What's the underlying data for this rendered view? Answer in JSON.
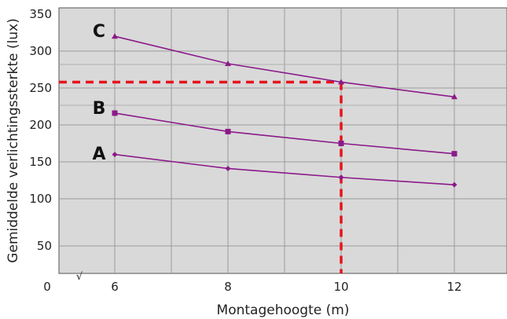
{
  "chart_data": {
    "type": "line",
    "xlabel": "Montagehoogte (m)",
    "ylabel": "Gemiddelde verlichtingssterkte (lux)",
    "x_ticks": [
      6,
      8,
      10,
      12
    ],
    "y_ticks": [
      50,
      100,
      150,
      200,
      250,
      300,
      350
    ],
    "origin_label": "0",
    "axis_break": "√",
    "grid": true,
    "background": "#d9d9d9",
    "series": [
      {
        "name": "C",
        "marker": "triangle",
        "color": "#8b1a89",
        "x": [
          6,
          8,
          10,
          12
        ],
        "y": [
          320,
          283,
          258,
          238
        ]
      },
      {
        "name": "B",
        "marker": "square",
        "color": "#8b1a89",
        "x": [
          6,
          8,
          10,
          12
        ],
        "y": [
          216,
          191,
          175,
          161
        ]
      },
      {
        "name": "A",
        "marker": "diamond",
        "color": "#8b1a89",
        "x": [
          6,
          8,
          10,
          12
        ],
        "y": [
          160,
          141,
          129,
          119
        ]
      }
    ],
    "guide": {
      "color": "#e8121b",
      "x": 10,
      "y": 258,
      "style": "dashed"
    }
  }
}
